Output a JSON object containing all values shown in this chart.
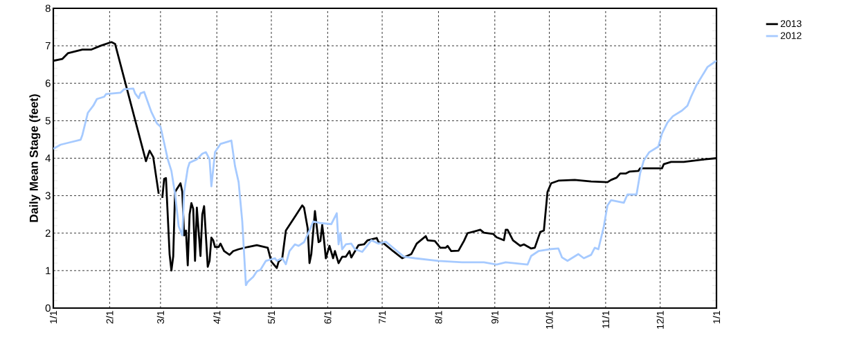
{
  "chart_data": {
    "type": "line",
    "ylabel": "Daily Mean Stage (feet)",
    "xlim": [
      "2013-01-01",
      "2014-01-01"
    ],
    "ylim": [
      0,
      8
    ],
    "xticks": [
      {
        "value": "2013-01-01",
        "label": "1/1"
      },
      {
        "value": "2013-02-01",
        "label": "2/1"
      },
      {
        "value": "2013-03-01",
        "label": "3/1"
      },
      {
        "value": "2013-04-01",
        "label": "4/1"
      },
      {
        "value": "2013-05-01",
        "label": "5/1"
      },
      {
        "value": "2013-06-01",
        "label": "6/1"
      },
      {
        "value": "2013-07-01",
        "label": "7/1"
      },
      {
        "value": "2013-08-01",
        "label": "8/1"
      },
      {
        "value": "2013-09-01",
        "label": "9/1"
      },
      {
        "value": "2013-10-01",
        "label": "10/1"
      },
      {
        "value": "2013-11-01",
        "label": "11/1"
      },
      {
        "value": "2013-12-01",
        "label": "12/1"
      },
      {
        "value": "2014-01-01",
        "label": "1/1"
      }
    ],
    "yticks": [
      0,
      1,
      2,
      3,
      4,
      5,
      6,
      7,
      8
    ],
    "grid": true,
    "legend": "top right",
    "line_style": "solid",
    "marker": "none",
    "series": [
      {
        "name": "2013",
        "color": "#000000",
        "x": [
          "2013-01-01",
          "2013-01-06",
          "2013-01-09",
          "2013-01-17",
          "2013-01-22",
          "2013-01-27",
          "2013-02-02",
          "2013-02-04",
          "2013-02-21",
          "2013-02-23",
          "2013-02-25",
          "2013-02-28",
          "2013-03-01",
          "2013-03-02",
          "2013-03-03",
          "2013-03-04",
          "2013-03-06",
          "2013-03-07",
          "2013-03-08",
          "2013-03-09",
          "2013-03-12",
          "2013-03-13",
          "2013-03-14",
          "2013-03-15",
          "2013-03-16",
          "2013-03-17",
          "2013-03-18",
          "2013-03-19",
          "2013-03-20",
          "2013-03-21",
          "2013-03-23",
          "2013-03-24",
          "2013-03-25",
          "2013-03-27",
          "2013-03-28",
          "2013-03-29",
          "2013-03-30",
          "2013-03-31",
          "2013-04-02",
          "2013-04-03",
          "2013-04-05",
          "2013-04-08",
          "2013-04-10",
          "2013-04-13",
          "2013-04-18",
          "2013-04-23",
          "2013-04-29",
          "2013-05-01",
          "2013-05-04",
          "2013-05-05",
          "2013-05-07",
          "2013-05-09",
          "2013-05-14",
          "2013-05-18",
          "2013-05-19",
          "2013-05-21",
          "2013-05-22",
          "2013-05-23",
          "2013-05-25",
          "2013-05-27",
          "2013-05-28",
          "2013-05-29",
          "2013-05-30",
          "2013-05-31",
          "2013-06-02",
          "2013-06-04",
          "2013-06-05",
          "2013-06-07",
          "2013-06-09",
          "2013-06-11",
          "2013-06-13",
          "2013-06-14",
          "2013-06-18",
          "2013-06-21",
          "2013-06-23",
          "2013-06-28",
          "2013-06-29",
          "2013-07-02",
          "2013-07-07",
          "2013-07-12",
          "2013-07-17",
          "2013-07-20",
          "2013-07-25",
          "2013-07-26",
          "2013-07-30",
          "2013-08-02",
          "2013-08-05",
          "2013-08-06",
          "2013-08-08",
          "2013-08-12",
          "2013-08-15",
          "2013-08-17",
          "2013-08-21",
          "2013-08-24",
          "2013-08-26",
          "2013-08-31",
          "2013-09-02",
          "2013-09-06",
          "2013-09-07",
          "2013-09-08",
          "2013-09-11",
          "2013-09-15",
          "2013-09-17",
          "2013-09-21",
          "2013-09-23",
          "2013-09-26",
          "2013-09-28",
          "2013-09-30",
          "2013-10-02",
          "2013-10-06",
          "2013-10-15",
          "2013-10-24",
          "2013-11-02",
          "2013-11-04",
          "2013-11-07",
          "2013-11-09",
          "2013-11-12",
          "2013-11-14",
          "2013-11-19",
          "2013-11-20",
          "2013-12-02",
          "2013-12-03",
          "2013-12-07",
          "2013-12-14",
          "2013-12-24",
          "2014-01-01"
        ],
        "values": [
          6.6,
          6.65,
          6.8,
          6.9,
          6.9,
          7.0,
          7.1,
          7.05,
          3.92,
          4.2,
          4.03,
          3.05,
          null,
          2.94,
          3.45,
          3.47,
          1.44,
          1.0,
          1.38,
          3.1,
          3.33,
          3.1,
          1.94,
          2.07,
          1.14,
          2.5,
          2.8,
          2.65,
          1.26,
          2.68,
          1.39,
          2.5,
          2.72,
          1.1,
          1.26,
          1.88,
          1.81,
          1.63,
          1.63,
          1.72,
          1.52,
          1.42,
          1.52,
          1.57,
          1.63,
          1.68,
          1.61,
          1.24,
          1.07,
          1.24,
          1.33,
          2.07,
          2.44,
          2.74,
          2.68,
          2.13,
          1.2,
          1.44,
          2.59,
          1.76,
          1.79,
          2.22,
          1.81,
          1.33,
          1.66,
          1.33,
          1.52,
          1.2,
          1.37,
          1.37,
          1.52,
          1.35,
          1.68,
          1.7,
          1.81,
          1.87,
          1.76,
          1.72,
          1.52,
          1.33,
          1.44,
          1.72,
          1.92,
          1.81,
          1.79,
          1.61,
          1.61,
          1.66,
          1.52,
          1.53,
          1.79,
          2.0,
          2.05,
          2.09,
          2.01,
          1.98,
          1.89,
          1.81,
          2.09,
          2.09,
          1.81,
          1.66,
          1.7,
          1.59,
          1.61,
          2.03,
          2.07,
          3.1,
          3.33,
          3.4,
          3.42,
          3.38,
          3.36,
          3.42,
          3.48,
          3.59,
          3.59,
          3.64,
          3.66,
          3.73,
          3.73,
          3.84,
          3.9,
          3.9,
          3.96,
          4.0
        ]
      },
      {
        "name": "2012",
        "color": "#a6caff",
        "x": [
          "2013-01-01",
          "2013-01-05",
          "2013-01-10",
          "2013-01-16",
          "2013-01-17",
          "2013-01-20",
          "2013-01-23",
          "2013-01-25",
          "2013-01-29",
          "2013-01-30",
          "2013-02-07",
          "2013-02-09",
          "2013-02-14",
          "2013-02-15",
          "2013-02-17",
          "2013-02-18",
          "2013-02-20",
          "2013-02-24",
          "2013-02-27",
          "2013-03-01",
          "2013-03-05",
          "2013-03-07",
          "2013-03-09",
          "2013-03-11",
          "2013-03-13",
          "2013-03-14",
          "2013-03-16",
          "2013-03-17",
          "2013-03-21",
          "2013-03-24",
          "2013-03-26",
          "2013-03-28",
          "2013-03-29",
          "2013-03-31",
          "2013-04-03",
          "2013-04-09",
          "2013-04-11",
          "2013-04-13",
          "2013-04-15",
          "2013-04-17",
          "2013-04-18",
          "2013-04-21",
          "2013-04-23",
          "2013-04-25",
          "2013-04-28",
          "2013-05-03",
          "2013-05-04",
          "2013-05-07",
          "2013-05-09",
          "2013-05-11",
          "2013-05-14",
          "2013-05-16",
          "2013-05-19",
          "2013-05-22",
          "2013-05-24",
          "2013-05-28",
          "2013-06-03",
          "2013-06-06",
          "2013-06-07",
          "2013-06-08",
          "2013-06-09",
          "2013-06-11",
          "2013-06-14",
          "2013-06-16",
          "2013-06-20",
          "2013-06-25",
          "2013-06-29",
          "2013-07-03",
          "2013-07-08",
          "2013-07-13",
          "2013-07-19",
          "2013-08-01",
          "2013-08-14",
          "2013-08-26",
          "2013-09-02",
          "2013-09-07",
          "2013-09-19",
          "2013-09-21",
          "2013-09-25",
          "2013-10-01",
          "2013-10-06",
          "2013-10-08",
          "2013-10-11",
          "2013-10-17",
          "2013-10-20",
          "2013-10-24",
          "2013-10-26",
          "2013-10-28",
          "2013-10-31",
          "2013-11-02",
          "2013-11-04",
          "2013-11-11",
          "2013-11-13",
          "2013-11-18",
          "2013-11-20",
          "2013-11-22",
          "2013-11-25",
          "2013-11-30",
          "2013-12-02",
          "2013-12-05",
          "2013-12-08",
          "2013-12-13",
          "2013-12-16",
          "2013-12-18",
          "2013-12-21",
          "2013-12-24",
          "2013-12-27",
          "2014-01-01"
        ],
        "values": [
          4.25,
          4.36,
          4.42,
          4.49,
          4.62,
          5.21,
          5.4,
          5.58,
          5.64,
          5.71,
          5.75,
          5.84,
          5.86,
          5.73,
          5.6,
          5.73,
          5.77,
          5.23,
          4.93,
          4.84,
          3.97,
          3.66,
          3.05,
          2.18,
          1.94,
          3.1,
          3.73,
          3.88,
          3.97,
          4.12,
          4.16,
          3.97,
          3.25,
          4.16,
          4.38,
          4.47,
          3.79,
          3.36,
          2.31,
          0.61,
          0.7,
          0.83,
          0.98,
          1.02,
          1.26,
          1.33,
          1.26,
          1.33,
          1.17,
          1.52,
          1.7,
          1.66,
          1.76,
          2.07,
          2.31,
          2.27,
          2.24,
          2.53,
          1.7,
          2.0,
          1.57,
          1.7,
          1.72,
          1.57,
          1.5,
          1.81,
          1.72,
          1.77,
          1.57,
          1.37,
          1.33,
          1.26,
          1.22,
          1.22,
          1.16,
          1.22,
          1.16,
          1.39,
          1.52,
          1.57,
          1.59,
          1.35,
          1.26,
          1.44,
          1.33,
          1.42,
          1.61,
          1.57,
          2.18,
          2.74,
          2.88,
          2.81,
          3.03,
          3.03,
          3.6,
          3.94,
          4.16,
          4.31,
          4.66,
          4.95,
          5.12,
          5.27,
          5.4,
          5.64,
          5.95,
          6.19,
          6.43,
          6.6
        ]
      }
    ]
  }
}
